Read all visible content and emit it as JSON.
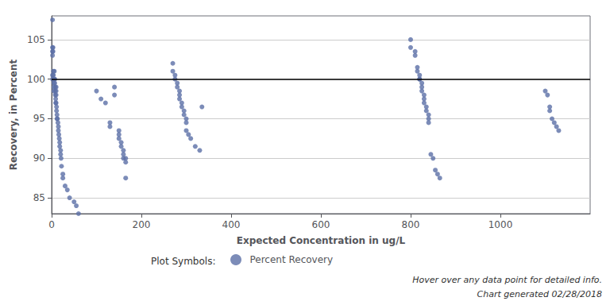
{
  "chart_data": {
    "type": "scatter",
    "xlabel": "Expected Concentration in ug/L",
    "ylabel": "Recovery, in Percent",
    "xlim": [
      0,
      1200
    ],
    "ylim": [
      83,
      108
    ],
    "xticks": [
      0,
      200,
      400,
      600,
      800,
      1000
    ],
    "yticks": [
      85,
      90,
      95,
      100,
      105
    ],
    "grid": true,
    "legend": "bottom",
    "legend_title": "Plot Symbols:",
    "hline_y": 100,
    "annotations": [
      "Hover over any data point for detailed info.",
      "Chart generated 02/28/2018"
    ],
    "x": [
      2,
      2,
      2,
      2,
      2,
      2,
      3,
      3,
      4,
      4,
      5,
      5,
      5,
      6,
      6,
      7,
      7,
      8,
      8,
      8,
      9,
      9,
      10,
      10,
      10,
      10,
      11,
      11,
      12,
      12,
      13,
      14,
      15,
      15,
      16,
      17,
      18,
      18,
      20,
      20,
      21,
      22,
      25,
      25,
      30,
      35,
      40,
      50,
      55,
      60,
      100,
      110,
      120,
      130,
      130,
      140,
      140,
      150,
      150,
      150,
      155,
      155,
      160,
      160,
      160,
      165,
      165,
      165,
      270,
      270,
      275,
      275,
      280,
      280,
      285,
      285,
      285,
      290,
      290,
      295,
      295,
      300,
      300,
      300,
      305,
      310,
      320,
      330,
      335,
      800,
      800,
      810,
      810,
      815,
      815,
      820,
      820,
      820,
      825,
      825,
      825,
      830,
      830,
      830,
      835,
      835,
      840,
      840,
      840,
      845,
      850,
      855,
      860,
      865,
      1100,
      1105,
      1110,
      1110,
      1115,
      1120,
      1125,
      1130
    ],
    "series": [
      {
        "name": "Percent Recovery",
        "color": "#5b6fa6",
        "marker": "circle",
        "values": [
          107.5,
          104,
          103.5,
          103,
          100.5,
          100,
          104,
          103.5,
          101,
          100.5,
          99.5,
          99,
          98.5,
          101,
          100,
          100,
          99.5,
          99,
          98.5,
          98,
          97.5,
          97,
          99,
          98.5,
          98,
          97,
          96.5,
          96,
          95.5,
          95,
          95,
          94.5,
          94,
          93.5,
          93,
          92.5,
          92,
          91.5,
          91,
          90.5,
          90,
          89,
          88,
          87.5,
          86.5,
          86,
          85,
          84.5,
          84,
          83,
          98.5,
          97.5,
          97,
          94.5,
          94,
          99,
          98,
          93.5,
          93,
          92.5,
          92,
          91.5,
          91,
          90.5,
          90,
          90,
          89.5,
          87.5,
          102,
          101,
          100.5,
          100,
          99.5,
          99,
          98.5,
          98,
          97.5,
          97,
          96.5,
          96,
          95.5,
          95,
          94.5,
          93.5,
          93,
          92.5,
          91.5,
          91,
          96.5,
          105,
          104,
          103.5,
          103,
          101.5,
          101,
          100.5,
          100,
          100,
          99.5,
          99,
          98.5,
          98,
          97.5,
          97,
          96.5,
          96,
          95.5,
          95,
          94.5,
          90.5,
          90,
          88.5,
          88,
          87.5,
          98.5,
          98,
          96.5,
          96,
          95,
          94.5,
          94,
          93.5
        ]
      }
    ]
  }
}
